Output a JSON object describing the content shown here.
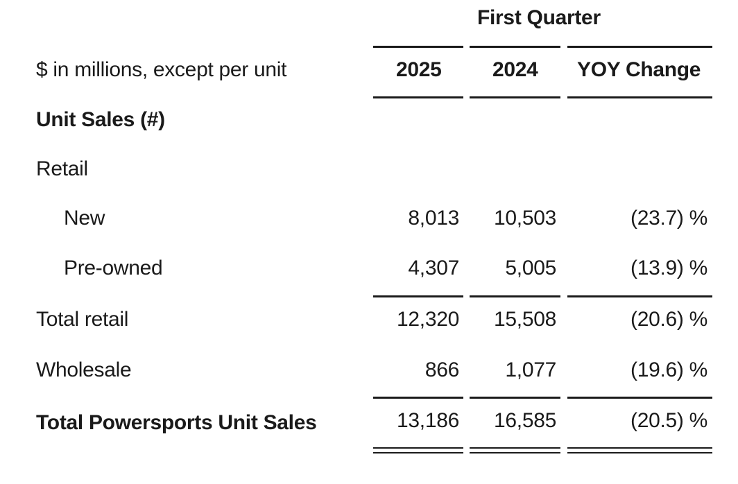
{
  "header": {
    "period_label": "First Quarter",
    "row_label_header": "$ in millions, except per unit",
    "columns": [
      "2025",
      "2024",
      "YOY Change"
    ]
  },
  "section": {
    "title": "Unit Sales (#)",
    "group_label": "Retail"
  },
  "rows": [
    {
      "label": "New",
      "v2025": "8,013",
      "v2024": "10,503",
      "yoy": "(23.7) %"
    },
    {
      "label": "Pre-owned",
      "v2025": "4,307",
      "v2024": "5,005",
      "yoy": "(13.9) %"
    },
    {
      "label": "Total retail",
      "v2025": "12,320",
      "v2024": "15,508",
      "yoy": "(20.6) %"
    },
    {
      "label": "Wholesale",
      "v2025": "866",
      "v2024": "1,077",
      "yoy": "(19.6) %"
    },
    {
      "label": "Total Powersports Unit Sales",
      "v2025": "13,186",
      "v2024": "16,585",
      "yoy": "(20.5) %"
    }
  ]
}
